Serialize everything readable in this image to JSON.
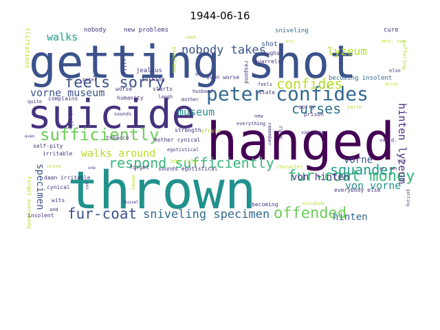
{
  "title": "1944-06-16",
  "colors": {
    "dark_purple": "#440154",
    "indigo": "#3b528b",
    "steel": "#31688e",
    "teal": "#21918c",
    "sea": "#1f9e89",
    "green": "#35b779",
    "lime": "#6ece58",
    "yellow_green": "#b5de2b",
    "yellow": "#fde725"
  },
  "words": [
    {
      "text": "getting shot",
      "color": "#3b528b"
    },
    {
      "text": "suicide",
      "color": "#46327e"
    },
    {
      "text": "hanged",
      "color": "#440154"
    },
    {
      "text": "thrown",
      "color": "#21918c"
    },
    {
      "text": "peter confides",
      "color": "#31688e"
    },
    {
      "text": "respond sufficiently",
      "color": "#35b779"
    },
    {
      "text": "sufficiently",
      "color": "#6ece58"
    },
    {
      "text": "feels sorry",
      "color": "#3b528b"
    },
    {
      "text": "fur-coat money",
      "color": "#35b779"
    },
    {
      "text": "confides",
      "color": "#b5de2b"
    },
    {
      "text": "squander",
      "color": "#1f9e89"
    },
    {
      "text": "curses",
      "color": "#2c728e"
    },
    {
      "text": "offended",
      "color": "#6ece58"
    },
    {
      "text": "fur-coat",
      "color": "#3b528b"
    },
    {
      "text": "sniveling specimen",
      "color": "#31688e"
    },
    {
      "text": "nobody takes",
      "color": "#3b528b"
    },
    {
      "text": "walks around",
      "color": "#b5de2b"
    },
    {
      "text": "vorne museum",
      "color": "#3b528b"
    },
    {
      "text": "museum",
      "color": "#21918c"
    },
    {
      "text": "von hinten",
      "color": "#46327e"
    },
    {
      "text": "von vorne",
      "color": "#21918c"
    },
    {
      "text": "lyzeum",
      "color": "#b5de2b"
    },
    {
      "text": "walks",
      "color": "#1f9e89"
    },
    {
      "text": "hinten lyzeum",
      "color": "#46327e"
    },
    {
      "text": "vorne",
      "color": "#3b528b"
    },
    {
      "text": "hinten",
      "color": "#31688e"
    },
    {
      "text": "specimen",
      "color": "#3b528b"
    },
    {
      "text": "nobody",
      "color": "#46327e"
    },
    {
      "text": "new problems",
      "color": "#46327e"
    },
    {
      "text": "sniveling",
      "color": "#31688e"
    },
    {
      "text": "cure",
      "color": "#46327e"
    },
    {
      "text": "shot",
      "color": "#3b528b"
    },
    {
      "text": "laughs",
      "color": "#46327e"
    },
    {
      "text": "quarrels",
      "color": "#46327e"
    },
    {
      "text": "becoming insolent",
      "color": "#31688e"
    },
    {
      "text": "state",
      "color": "#46327e"
    },
    {
      "text": "feels",
      "color": "#46327e"
    },
    {
      "text": "even worse",
      "color": "#46327e"
    },
    {
      "text": "starts",
      "color": "#46327e"
    },
    {
      "text": "worse",
      "color": "#46327e"
    },
    {
      "text": "jealous",
      "color": "#46327e"
    },
    {
      "text": "talking",
      "color": "#46327e"
    },
    {
      "text": "silly",
      "color": "#46327e"
    },
    {
      "text": "problems",
      "color": "#b5de2b"
    },
    {
      "text": "peter",
      "color": "#46327e"
    },
    {
      "text": "d.",
      "color": "#46327e"
    },
    {
      "text": "need",
      "color": "#b5de2b"
    },
    {
      "text": "respond",
      "color": "#46327e"
    },
    {
      "text": "mrs. van",
      "color": "#b5de2b"
    },
    {
      "text": "mrs.",
      "color": "#b5de2b"
    },
    {
      "text": "else",
      "color": "#46327e"
    },
    {
      "text": "suffering",
      "color": "#b5de2b"
    },
    {
      "text": "going",
      "color": "#b5de2b"
    },
    {
      "text": "flirtations",
      "color": "#b5de2b"
    },
    {
      "text": "humanity",
      "color": "#46327e"
    },
    {
      "text": "laugh",
      "color": "#46327e"
    },
    {
      "text": "husband",
      "color": "#46327e"
    },
    {
      "text": "mother",
      "color": "#46327e"
    },
    {
      "text": "complains",
      "color": "#46327e"
    },
    {
      "text": "quite",
      "color": "#46327e"
    },
    {
      "text": "sorry",
      "color": "#46327e"
    },
    {
      "text": "prison",
      "color": "#46327e"
    },
    {
      "text": "earth",
      "color": "#b5de2b"
    },
    {
      "text": "van daan",
      "color": "#46327e"
    },
    {
      "text": "new",
      "color": "#46327e"
    },
    {
      "text": "strength",
      "color": "#46327e"
    },
    {
      "text": "afraid",
      "color": "#b5de2b"
    },
    {
      "text": "sounds",
      "color": "#46327e"
    },
    {
      "text": "self-pity",
      "color": "#46327e"
    },
    {
      "text": "tobacco",
      "color": "#46327e"
    },
    {
      "text": "mother cynical",
      "color": "#46327e"
    },
    {
      "text": "egotistical",
      "color": "#46327e"
    },
    {
      "text": "irritable",
      "color": "#46327e"
    },
    {
      "text": "even",
      "color": "#46327e"
    },
    {
      "text": "actually",
      "color": "#46327e"
    },
    {
      "text": "one rule",
      "color": "#b5de2b"
    },
    {
      "text": "rule",
      "color": "#46327e"
    },
    {
      "text": "van d.",
      "color": "#46327e"
    },
    {
      "text": "daan irritable",
      "color": "#46327e"
    },
    {
      "text": "forget everybody",
      "color": "#b5de2b"
    },
    {
      "text": "cynical",
      "color": "#46327e"
    },
    {
      "text": "cries",
      "color": "#b5de2b"
    },
    {
      "text": "forget",
      "color": "#46327e"
    },
    {
      "text": "sounds egotistical",
      "color": "#46327e"
    },
    {
      "text": "character",
      "color": "#b5de2b"
    },
    {
      "text": "mr. van",
      "color": "#46327e"
    },
    {
      "text": "everybody else",
      "color": "#46327e"
    },
    {
      "text": "von",
      "color": "#46327e"
    },
    {
      "text": "wits",
      "color": "#46327e"
    },
    {
      "text": "insolent",
      "color": "#46327e"
    },
    {
      "text": "dussel",
      "color": "#46327e"
    },
    {
      "text": "becoming",
      "color": "#46327e"
    },
    {
      "text": "everybody",
      "color": "#b5de2b"
    },
    {
      "text": "getting",
      "color": "#46327e"
    },
    {
      "text": "everything",
      "color": "#46327e"
    },
    {
      "text": "money",
      "color": "#b5de2b"
    },
    {
      "text": "remember",
      "color": "#46327e"
    },
    {
      "text": "one",
      "color": "#46327e"
    },
    {
      "text": "yes",
      "color": "#46327e"
    },
    {
      "text": "and",
      "color": "#46327e"
    }
  ]
}
